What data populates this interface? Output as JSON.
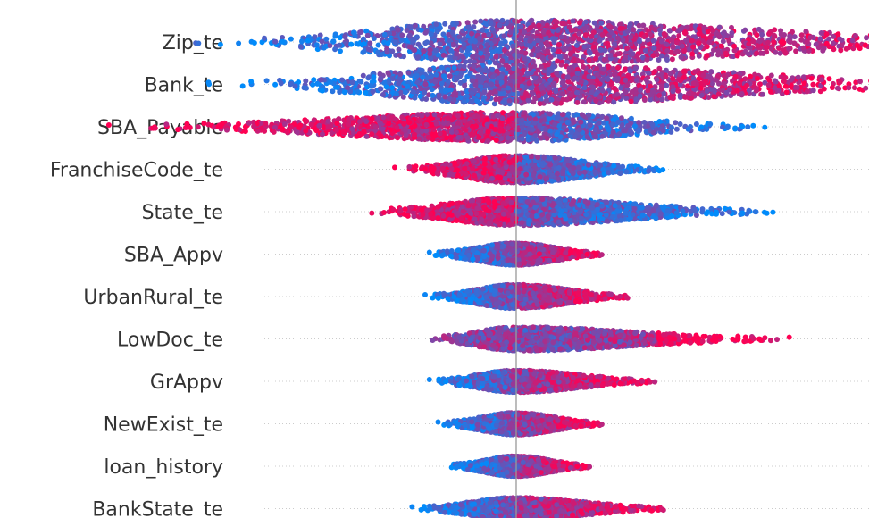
{
  "chart_data": {
    "type": "scatter",
    "subtype": "beeswarm",
    "title": "",
    "xlabel": "",
    "ylabel": "",
    "baseline": 0,
    "xlim": [
      -1.0,
      1.4
    ],
    "colors": {
      "high": "#ff0052",
      "low": "#008bfb",
      "baseline": "#999999",
      "grid": "#cccccc"
    },
    "features": [
      {
        "name": "Zip_te",
        "min": -0.75,
        "max": 1.35,
        "spread": 0.95
      },
      {
        "name": "Bank_te",
        "min": -0.72,
        "max": 1.2,
        "spread": 0.85
      },
      {
        "name": "SBA_Payable",
        "min": -0.95,
        "max": 0.61,
        "spread": 0.55
      },
      {
        "name": "FranchiseCode_te",
        "min": -0.29,
        "max": 0.36,
        "spread": 0.5
      },
      {
        "name": "State_te",
        "min": -0.38,
        "max": 0.63,
        "spread": 0.5
      },
      {
        "name": "SBA_Appv",
        "min": -0.21,
        "max": 0.21,
        "spread": 0.35
      },
      {
        "name": "UrbanRural_te",
        "min": -0.22,
        "max": 0.28,
        "spread": 0.4
      },
      {
        "name": "LowDoc_te",
        "min": -0.22,
        "max": 0.64,
        "spread": 0.4
      },
      {
        "name": "GrAppv",
        "min": -0.21,
        "max": 0.34,
        "spread": 0.35
      },
      {
        "name": "NewExist_te",
        "min": -0.19,
        "max": 0.21,
        "spread": 0.35
      },
      {
        "name": "loan_history",
        "min": -0.17,
        "max": 0.18,
        "spread": 0.3
      },
      {
        "name": "BankState_te",
        "min": -0.25,
        "max": 0.37,
        "spread": 0.35
      }
    ]
  }
}
